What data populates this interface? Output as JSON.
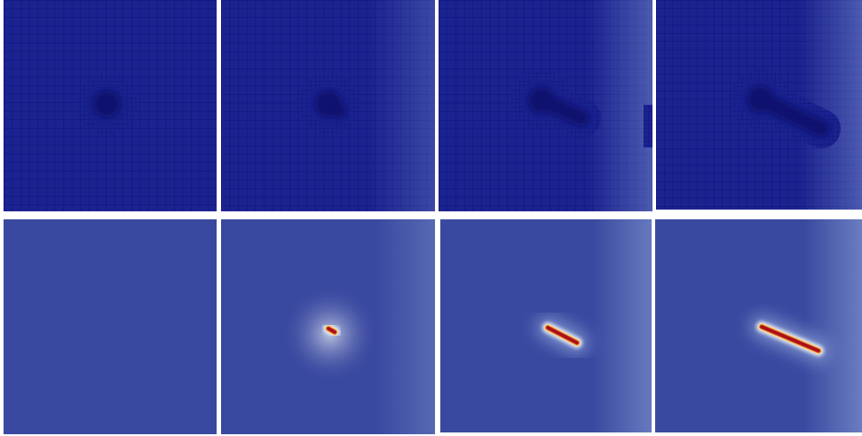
{
  "colors": {
    "page_background": "#ffffff",
    "mesh_fill": "#1b2391",
    "mesh_line": "#0f1478",
    "refined_core": "#090e66",
    "field_low": "#3a49a0",
    "field_light": "#8aa0d6",
    "halo_outer": "#e9eef5",
    "halo_inner": "#f6d57e",
    "crack_edge": "#e0602a",
    "crack": "#a8101a"
  }
}
